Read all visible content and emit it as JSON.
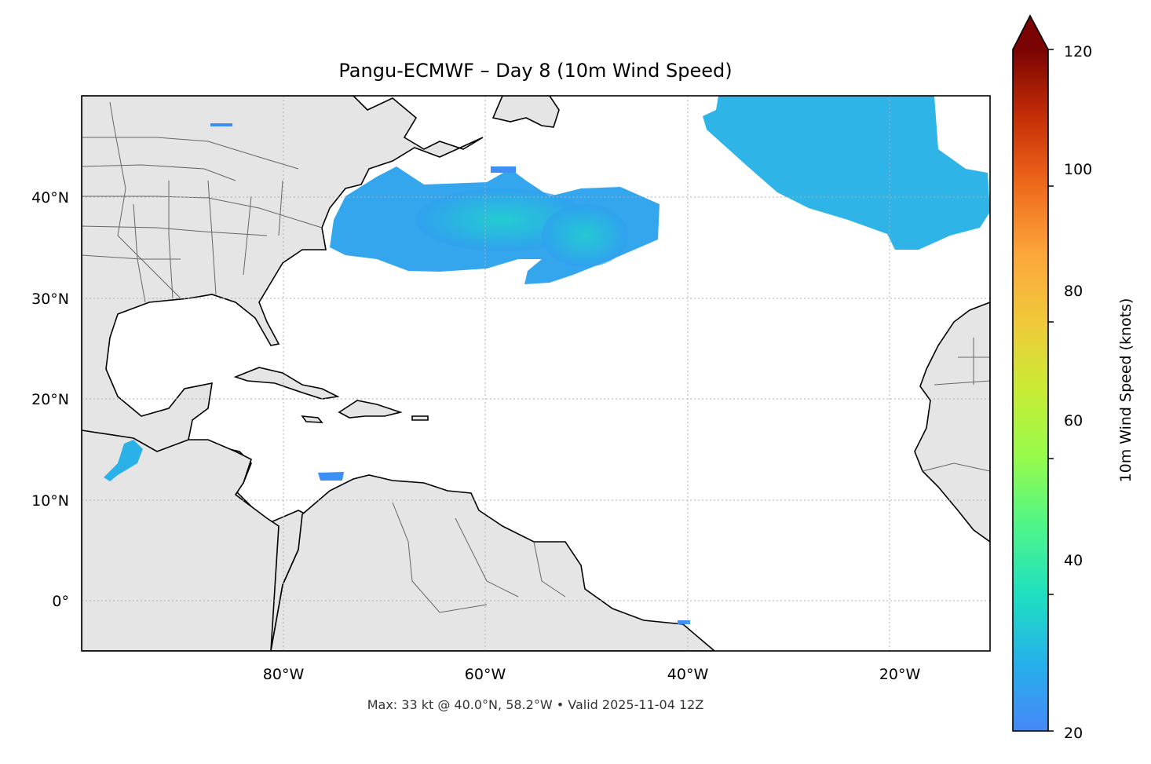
{
  "title": "Pangu-ECMWF – Day 8 (10m Wind Speed)",
  "footer": "Max: 33 kt @ 40.0°N, 58.2°W • Valid 2025-11-04 12Z",
  "map": {
    "lon_range": [
      -100,
      -10
    ],
    "lat_range": [
      -5,
      50
    ],
    "lat_ticks": [
      {
        "value": 40,
        "label": "40°N"
      },
      {
        "value": 30,
        "label": "30°N"
      },
      {
        "value": 20,
        "label": "20°N"
      },
      {
        "value": 10,
        "label": "10°N"
      },
      {
        "value": 0,
        "label": "0°"
      }
    ],
    "lon_ticks": [
      {
        "value": -80,
        "label": "80°W"
      },
      {
        "value": -60,
        "label": "60°W"
      },
      {
        "value": -40,
        "label": "40°W"
      },
      {
        "value": -20,
        "label": "20°W"
      }
    ],
    "gridlines": true,
    "land_color": "#e5e5e5",
    "coast_color": "#000000",
    "border_color": "#666666"
  },
  "colorbar": {
    "label": "10m Wind Speed (knots)",
    "min": 20,
    "max": 120,
    "extend": "max",
    "ticks": [
      "20",
      "40",
      "60",
      "80",
      "100",
      "120"
    ],
    "colormap": "turbo"
  },
  "wind_swaths": [
    {
      "name": "north-atlantic-east-swath",
      "color": "#26b6e6"
    },
    {
      "name": "western-atlantic-swath",
      "color": "#2ea5ee"
    },
    {
      "name": "eastern-pacific-swath",
      "color": "#2f9ff0"
    },
    {
      "name": "caribbean-small-swath",
      "color": "#3d8ff5"
    }
  ]
}
